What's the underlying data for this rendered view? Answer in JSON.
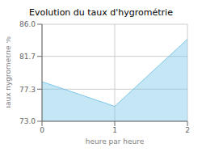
{
  "chart_data": {
    "type": "area",
    "title": "Evolution du taux d'hygrométrie",
    "xlabel": "heure par heure",
    "ylabel": "Taux hygrométrie %",
    "x": [
      0,
      1,
      2
    ],
    "values": [
      78.3,
      75.0,
      84.0
    ],
    "xlim": [
      0,
      2
    ],
    "ylim": [
      73.0,
      86.0
    ],
    "xticks": [
      0,
      1,
      2
    ],
    "yticks": [
      {
        "value": 73.0,
        "label": "73.0"
      },
      77.3,
      81.7,
      {
        "value": 86.0,
        "label": "86.0"
      }
    ],
    "color": "#7cc8e8",
    "grid": true
  }
}
